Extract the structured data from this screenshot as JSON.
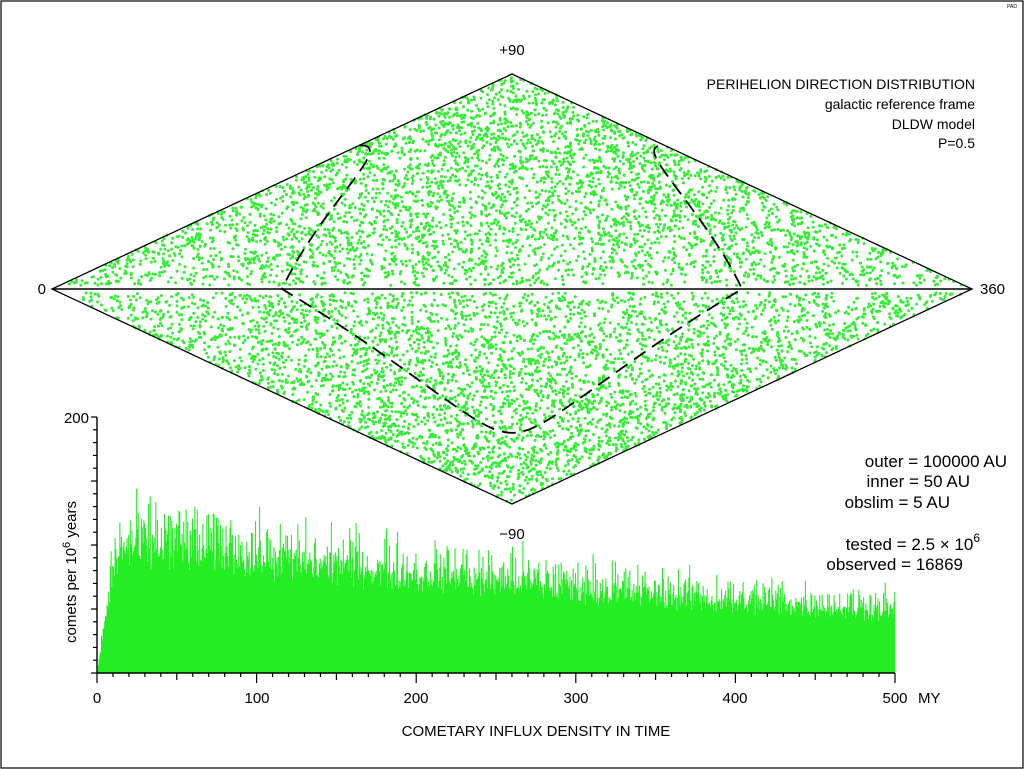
{
  "corner_tag": "PAD",
  "sky_map": {
    "title_lines": [
      "PERIHELION DIRECTION DISTRIBUTION",
      "galactic reference frame",
      "DLDW model",
      "P=0.5"
    ],
    "label_top": "+90",
    "label_bottom": "−90",
    "label_left": "0",
    "label_right": "360",
    "point_color": "#33ee33",
    "point_count": 9000,
    "curve_note": "dashed sinusoid (ecliptic)"
  },
  "params": {
    "outer": "outer = 100000 AU",
    "inner": "inner = 50 AU",
    "obslim": "obslim = 5 AU",
    "tested_prefix": "tested = 2.5 × 10",
    "tested_exp": "6",
    "observed": "observed = 16869"
  },
  "chart_data": {
    "type": "bar",
    "title": "COMETARY INFLUX DENSITY IN TIME",
    "xlabel": "MY",
    "ylabel_prefix": "comets per 10",
    "ylabel_exp": "6",
    "ylabel_suffix": " years",
    "xlim": [
      0,
      500
    ],
    "ylim": [
      0,
      200
    ],
    "x_ticks": [
      "0",
      "100",
      "200",
      "300",
      "400",
      "500"
    ],
    "y_ticks": [
      "200"
    ],
    "bar_color": "#22ee22",
    "envelope": [
      [
        0,
        0
      ],
      [
        5,
        45
      ],
      [
        10,
        90
      ],
      [
        15,
        105
      ],
      [
        20,
        108
      ],
      [
        30,
        110
      ],
      [
        50,
        110
      ],
      [
        75,
        105
      ],
      [
        100,
        100
      ],
      [
        125,
        96
      ],
      [
        150,
        92
      ],
      [
        175,
        89
      ],
      [
        200,
        86
      ],
      [
        225,
        83
      ],
      [
        250,
        80
      ],
      [
        275,
        77
      ],
      [
        300,
        74
      ],
      [
        325,
        71
      ],
      [
        350,
        68
      ],
      [
        375,
        65
      ],
      [
        400,
        62
      ],
      [
        425,
        60
      ],
      [
        450,
        58
      ],
      [
        475,
        56
      ],
      [
        500,
        55
      ]
    ]
  }
}
